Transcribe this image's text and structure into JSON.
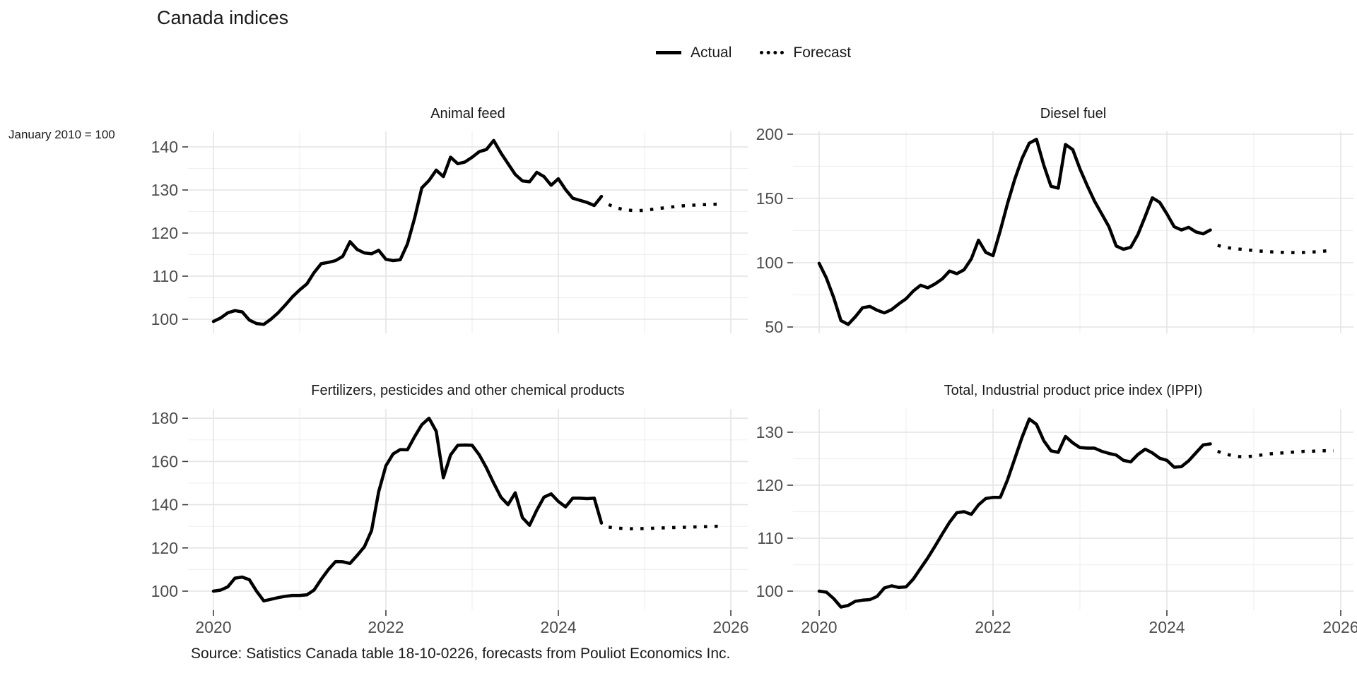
{
  "main_title": "Canada indices",
  "annotation": "January 2010 = 100",
  "caption": "Source: Satistics Canada table 18-10-0226, forecasts from Pouliot Economics Inc.",
  "legend": {
    "actual_label": "Actual",
    "forecast_label": "Forecast"
  },
  "colors": {
    "line": "#000000",
    "axis_text": "#4d4d4d",
    "grid_major": "#e4e4e4",
    "grid_minor": "#f0f0f0",
    "tick": "#404040",
    "title_text": "#1a1a1a",
    "background": "#ffffff"
  },
  "chart_data": {
    "type": "line",
    "title": "Canada indices",
    "unit_note": "January 2010 = 100",
    "frequency": "monthly",
    "start_month": "2020-01",
    "forecast_start_index": 55,
    "x_tick_labels": [
      "2020",
      "2022",
      "2024",
      "2026"
    ],
    "x_tick_years": [
      2020,
      2022,
      2024,
      2026
    ],
    "x_minor_years": [
      2021,
      2023,
      2025
    ],
    "legend": [
      "Actual",
      "Forecast"
    ],
    "legend_position": "top-center",
    "grid": true,
    "panels": [
      {
        "id": "animal_feed",
        "title": "Animal feed",
        "ylim": [
          96.7,
          143.8
        ],
        "y_ticks": [
          100,
          110,
          120,
          130,
          140
        ],
        "y_tick_labels": [
          "100",
          "110",
          "120",
          "130",
          "140"
        ],
        "y_minor": [
          105,
          115,
          125,
          135
        ],
        "actual": [
          99.5,
          100.3,
          101.5,
          102,
          101.7,
          99.8,
          99,
          98.8,
          100,
          101.5,
          103.3,
          105.2,
          106.8,
          108.2,
          110.8,
          112.9,
          113.2,
          113.6,
          114.6,
          118,
          116.2,
          115.4,
          115.2,
          116,
          113.9,
          113.6,
          113.8,
          117.5,
          123.5,
          130.5,
          132.2,
          134.6,
          133.1,
          137.6,
          136.1,
          136.5,
          137.6,
          138.9,
          139.4,
          141.5,
          138.6,
          136.1,
          133.6,
          132.1,
          131.9,
          134.1,
          133.1,
          131.1,
          132.6,
          130.1,
          128.1,
          127.6,
          127.1,
          126.4,
          128.5
        ],
        "forecast": [
          126.6,
          125.9,
          125.5,
          125.3,
          125.2,
          125.3,
          125.5,
          125.7,
          125.9,
          126.1,
          126.3,
          126.4,
          126.5,
          126.6,
          126.6,
          126.7,
          126.7
        ]
      },
      {
        "id": "diesel_fuel",
        "title": "Diesel fuel",
        "ylim": [
          44.8,
          203.2
        ],
        "y_ticks": [
          50,
          100,
          150,
          200
        ],
        "y_tick_labels": [
          "50",
          "100",
          "150",
          "200"
        ],
        "y_minor": [
          75,
          125,
          175
        ],
        "actual": [
          99.5,
          88,
          73,
          55,
          52,
          58,
          65,
          66,
          63,
          61,
          63.5,
          68,
          72,
          78,
          82.5,
          80.5,
          83.5,
          87.5,
          93.5,
          91.5,
          94.5,
          103,
          117.5,
          108,
          105.5,
          125,
          146,
          165,
          181,
          193,
          196,
          176,
          159.5,
          158,
          192,
          188,
          173,
          160,
          148,
          138,
          128,
          113,
          110.5,
          112,
          122,
          136,
          150.5,
          147,
          138,
          128,
          125.5,
          127.5,
          124,
          122.5,
          125.5
        ],
        "forecast": [
          113.5,
          112,
          111.2,
          110.6,
          110,
          109.5,
          109,
          108.6,
          108.3,
          108,
          107.9,
          107.9,
          108,
          108.3,
          108.7,
          109.2,
          110
        ]
      },
      {
        "id": "fertilizers",
        "title": "Fertilizers, pesticides and other chemical products",
        "ylim": [
          91.3,
          184.2
        ],
        "y_ticks": [
          100,
          120,
          140,
          160,
          180
        ],
        "y_tick_labels": [
          "100",
          "120",
          "140",
          "160",
          "180"
        ],
        "y_minor": [
          110,
          130,
          150,
          170
        ],
        "actual": [
          100,
          100.5,
          102,
          106,
          106.5,
          105.3,
          100,
          95.5,
          96.2,
          97,
          97.6,
          98,
          98,
          98.3,
          100.5,
          105.5,
          110,
          113.7,
          113.6,
          112.8,
          116.5,
          120.5,
          128,
          146,
          158,
          163.5,
          165.5,
          165.4,
          171.5,
          177,
          180,
          174,
          152.5,
          163,
          167.5,
          167.6,
          167.5,
          163,
          157,
          150,
          143.5,
          140,
          145.5,
          134,
          130.5,
          137.5,
          143.5,
          145,
          141.5,
          139,
          143,
          143,
          142.8,
          143,
          131.5
        ],
        "forecast": [
          129.6,
          129.2,
          129,
          128.9,
          128.9,
          129,
          129.1,
          129.2,
          129.3,
          129.4,
          129.5,
          129.6,
          129.7,
          129.8,
          129.9,
          130,
          130
        ]
      },
      {
        "id": "ippi_total",
        "title": "Total, Industrial product price index (IPPI)",
        "ylim": [
          95.2,
          134.4
        ],
        "y_ticks": [
          100,
          110,
          120,
          130
        ],
        "y_tick_labels": [
          "100",
          "110",
          "120",
          "130"
        ],
        "y_minor": [
          105,
          115,
          125
        ],
        "actual": [
          100,
          99.8,
          98.6,
          97,
          97.3,
          98.1,
          98.3,
          98.4,
          99,
          100.6,
          101,
          100.7,
          100.8,
          102.3,
          104.3,
          106.3,
          108.5,
          110.8,
          113,
          114.8,
          115,
          114.5,
          116.3,
          117.5,
          117.7,
          117.7,
          121,
          125,
          129,
          132.5,
          131.5,
          128.4,
          126.5,
          126.2,
          129.2,
          128,
          127.1,
          127,
          127,
          126.4,
          126,
          125.7,
          124.7,
          124.4,
          125.8,
          126.8,
          126.1,
          125.1,
          124.7,
          123.4,
          123.5,
          124.6,
          126.1,
          127.6,
          127.8
        ],
        "forecast": [
          126.4,
          125.9,
          125.6,
          125.4,
          125.4,
          125.5,
          125.7,
          125.9,
          126,
          126.1,
          126.2,
          126.3,
          126.4,
          126.4,
          126.5,
          126.5,
          126.5
        ]
      }
    ]
  }
}
